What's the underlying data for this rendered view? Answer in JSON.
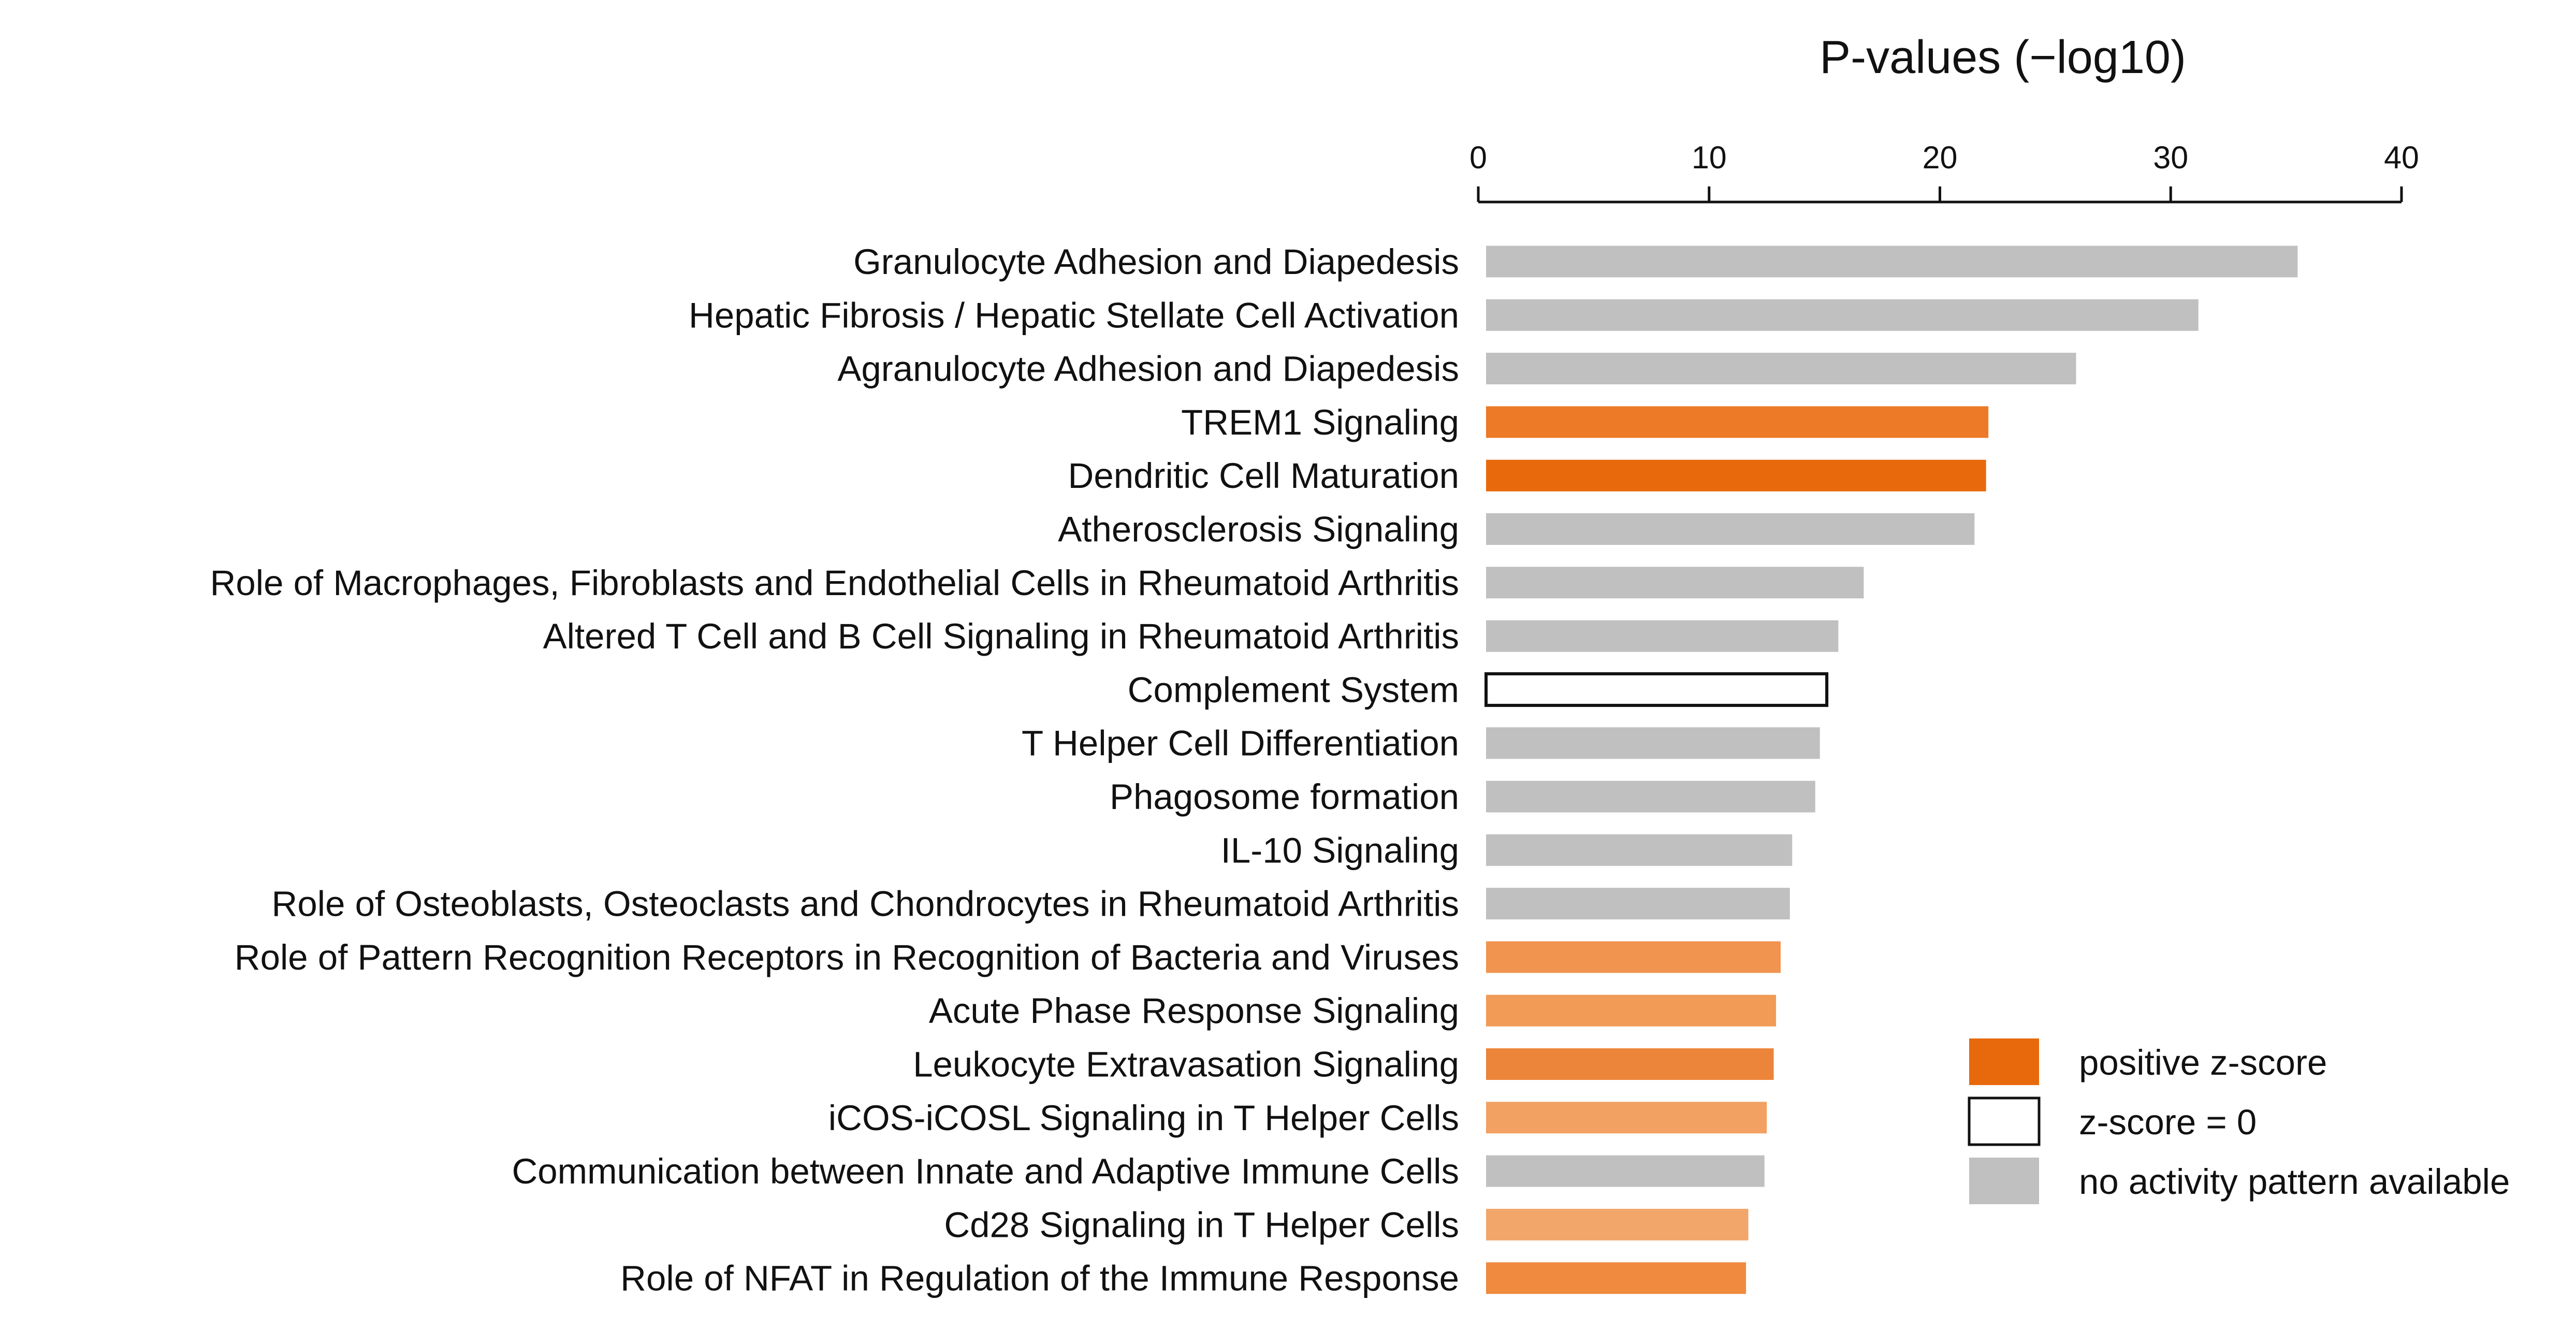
{
  "chart_data": {
    "type": "bar",
    "orientation": "horizontal",
    "title": "P-values (−log10)",
    "xlabel": "",
    "ylabel": "",
    "xlim": [
      0,
      40
    ],
    "x_ticks": [
      "0",
      "10",
      "20",
      "30",
      "40"
    ],
    "axis_position": "top",
    "grid": false,
    "legend_position": "bottom-right",
    "categories": [
      "Granulocyte Adhesion and Diapedesis",
      "Hepatic Fibrosis / Hepatic Stellate Cell Activation",
      "Agranulocyte Adhesion and Diapedesis",
      "TREM1 Signaling",
      "Dendritic Cell Maturation",
      "Atherosclerosis Signaling",
      "Role of Macrophages, Fibroblasts and Endothelial Cells in Rheumatoid Arthritis",
      "Altered T Cell and B Cell Signaling in Rheumatoid Arthritis",
      "Complement System",
      "T Helper Cell Differentiation",
      "Phagosome formation",
      "IL-10 Signaling",
      "Role of Osteoblasts, Osteoclasts and Chondrocytes in Rheumatoid Arthritis",
      "Role of Pattern Recognition Receptors in Recognition of Bacteria and Viruses",
      "Acute Phase Response Signaling",
      "Leukocyte Extravasation Signaling",
      "iCOS-iCOSL Signaling in T Helper Cells",
      "Communication between Innate and Adaptive Immune Cells",
      "Cd28 Signaling in T Helper Cells",
      "Role of NFAT in Regulation of the Immune Response"
    ],
    "values": [
      35.5,
      31.2,
      25.9,
      22.1,
      22.0,
      21.5,
      16.7,
      15.6,
      15.1,
      14.8,
      14.6,
      13.6,
      13.5,
      13.1,
      12.9,
      12.8,
      12.5,
      12.4,
      11.7,
      11.6
    ],
    "bar_colors": [
      "#c0c0c0",
      "#c0c0c0",
      "#c0c0c0",
      "#ec7a26",
      "#e8690c",
      "#c0c0c0",
      "#c0c0c0",
      "#c0c0c0",
      "#ffffff",
      "#c0c0c0",
      "#c0c0c0",
      "#c0c0c0",
      "#c0c0c0",
      "#f0944f",
      "#f19b56",
      "#ec8439",
      "#f2a163",
      "#c0c0c0",
      "#f2a66a",
      "#ef8a3f"
    ],
    "bar_outlined": [
      false,
      false,
      false,
      false,
      false,
      false,
      false,
      false,
      true,
      false,
      false,
      false,
      false,
      false,
      false,
      false,
      false,
      false,
      false,
      false
    ],
    "legend": [
      {
        "label": "positive z-score",
        "color": "#e8690c",
        "outlined": false
      },
      {
        "label": "z-score = 0",
        "color": "#ffffff",
        "outlined": true
      },
      {
        "label": "no activity pattern available",
        "color": "#c0c0c0",
        "outlined": false
      }
    ]
  }
}
